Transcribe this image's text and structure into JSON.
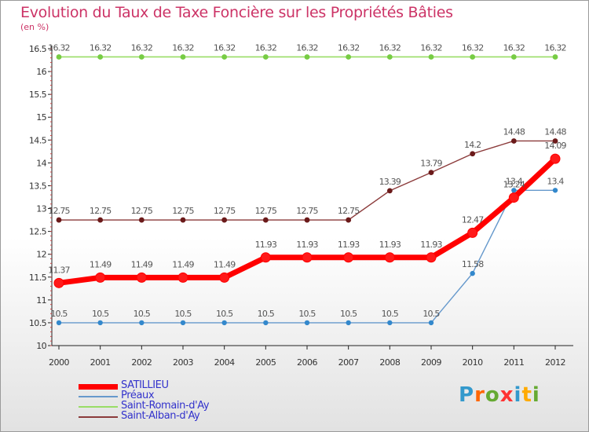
{
  "title": "Evolution du Taux de Taxe Foncière sur les Propriétés Bâties",
  "unit_label": "(en %)",
  "logo_text": "Proxiti",
  "chart_data": {
    "type": "line",
    "title": "Evolution du Taux de Taxe Foncière sur les Propriétés Bâties",
    "ylabel": "(en %)",
    "categories": [
      "2000",
      "2001",
      "2002",
      "2003",
      "2004",
      "2005",
      "2006",
      "2007",
      "2008",
      "2009",
      "2010",
      "2011",
      "2012"
    ],
    "ylim": [
      10,
      16.5
    ],
    "yticks": [
      "10",
      "10.5",
      "11",
      "11.5",
      "12",
      "12.5",
      "13",
      "13.5",
      "14",
      "14.5",
      "15",
      "15.5",
      "16",
      "16.5"
    ],
    "grid": false,
    "legend_position": "bottom-left",
    "series": [
      {
        "name": "SATILLIEU",
        "color": "#ff0000",
        "values": [
          11.37,
          11.49,
          11.49,
          11.49,
          11.49,
          11.93,
          11.93,
          11.93,
          11.93,
          11.93,
          12.47,
          13.24,
          14.09
        ],
        "labels": [
          "11.37",
          "11.49",
          "11.49",
          "11.49",
          "11.49",
          "11.93",
          "11.93",
          "11.93",
          "11.93",
          "11.93",
          "12.47",
          "13.24",
          "14.09"
        ]
      },
      {
        "name": "Préaux",
        "color": "#6699cc",
        "values": [
          10.5,
          10.5,
          10.5,
          10.5,
          10.5,
          10.5,
          10.5,
          10.5,
          10.5,
          10.5,
          11.58,
          13.4,
          13.4
        ],
        "labels": [
          "10.5",
          "10.5",
          "10.5",
          "10.5",
          "10.5",
          "10.5",
          "10.5",
          "10.5",
          "10.5",
          "10.5",
          "11.58",
          "13.4",
          "13.4"
        ]
      },
      {
        "name": "Saint-Romain-d'Ay",
        "color": "#99dd66",
        "values": [
          16.32,
          16.32,
          16.32,
          16.32,
          16.32,
          16.32,
          16.32,
          16.32,
          16.32,
          16.32,
          16.32,
          16.32,
          16.32
        ],
        "labels": [
          "16.32",
          "16.32",
          "16.32",
          "16.32",
          "16.32",
          "16.32",
          "16.32",
          "16.32",
          "16.32",
          "16.32",
          "16.32",
          "16.32",
          "16.32"
        ]
      },
      {
        "name": "Saint-Alban-d'Ay",
        "color": "#8b3a3a",
        "values": [
          12.75,
          12.75,
          12.75,
          12.75,
          12.75,
          12.75,
          12.75,
          12.75,
          13.39,
          13.79,
          14.2,
          14.48,
          14.48
        ],
        "labels": [
          "12.75",
          "12.75",
          "12.75",
          "12.75",
          "12.75",
          "12.75",
          "12.75",
          "12.75",
          "13.39",
          "13.79",
          "14.2",
          "14.48",
          "14.48"
        ]
      }
    ]
  }
}
